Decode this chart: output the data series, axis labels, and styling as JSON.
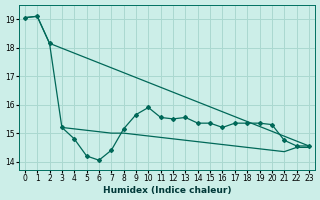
{
  "xlabel": "Humidex (Indice chaleur)",
  "bg_color": "#cceee8",
  "grid_color": "#aad8d0",
  "line_color": "#006858",
  "xlim": [
    -0.5,
    23.5
  ],
  "ylim": [
    13.7,
    19.5
  ],
  "yticks": [
    14,
    15,
    16,
    17,
    18,
    19
  ],
  "xticks": [
    0,
    1,
    2,
    3,
    4,
    5,
    6,
    7,
    8,
    9,
    10,
    11,
    12,
    13,
    14,
    15,
    16,
    17,
    18,
    19,
    20,
    21,
    22,
    23
  ],
  "line1_x": [
    0,
    1,
    2,
    23
  ],
  "line1_y": [
    19.05,
    19.1,
    18.15,
    14.55
  ],
  "line2_x": [
    0,
    1,
    2,
    3,
    4,
    5,
    6,
    7,
    8,
    9,
    10,
    11,
    12,
    13,
    14,
    15,
    16,
    17,
    18,
    19,
    20,
    21,
    22,
    23
  ],
  "line2_y": [
    19.05,
    19.1,
    18.15,
    15.2,
    14.8,
    14.2,
    14.05,
    14.4,
    15.15,
    15.65,
    15.9,
    15.55,
    15.5,
    15.55,
    15.35,
    15.35,
    15.2,
    15.35,
    15.35,
    15.35,
    15.3,
    14.75,
    14.55,
    14.55
  ],
  "line3_x": [
    3,
    4,
    5,
    6,
    7,
    8,
    9,
    10,
    11,
    12,
    13,
    14,
    15,
    16,
    17,
    18,
    19,
    20,
    21,
    22,
    23
  ],
  "line3_y": [
    15.2,
    15.15,
    15.1,
    15.05,
    15.0,
    15.0,
    14.95,
    14.9,
    14.85,
    14.8,
    14.75,
    14.7,
    14.65,
    14.6,
    14.55,
    14.5,
    14.45,
    14.4,
    14.35,
    14.5,
    14.5
  ],
  "xlabel_fontsize": 6.5,
  "tick_fontsize": 5.5
}
